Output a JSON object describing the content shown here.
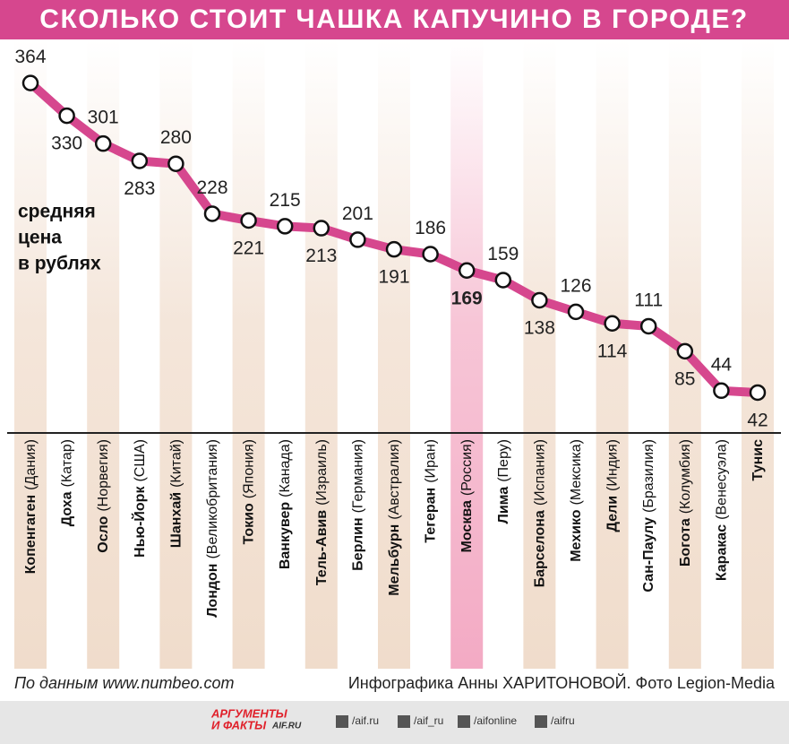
{
  "chart_data": {
    "type": "line",
    "title": "СКОЛЬКО СТОИТ ЧАШКА КАПУЧИНО В ГОРОДЕ?",
    "y_label": [
      "средняя",
      "цена",
      "в рублях"
    ],
    "categories": [
      {
        "city": "Копенгаген",
        "country": "(Дания)"
      },
      {
        "city": "Доха",
        "country": "(Катар)"
      },
      {
        "city": "Осло",
        "country": "(Норвегия)"
      },
      {
        "city": "Нью-Йорк",
        "country": "(США)"
      },
      {
        "city": "Шанхай",
        "country": "(Китай)"
      },
      {
        "city": "Лондон",
        "country": "(Великобритания)"
      },
      {
        "city": "Токио",
        "country": "(Япония)"
      },
      {
        "city": "Ванкувер",
        "country": "(Канада)"
      },
      {
        "city": "Тель-Авив",
        "country": "(Израиль)"
      },
      {
        "city": "Берлин",
        "country": "(Германия)"
      },
      {
        "city": "Мельбурн",
        "country": "(Австралия)"
      },
      {
        "city": "Тегеран",
        "country": "(Иран)"
      },
      {
        "city": "Москва",
        "country": "(Россия)"
      },
      {
        "city": "Лима",
        "country": "(Перу)"
      },
      {
        "city": "Барселона",
        "country": "(Испания)"
      },
      {
        "city": "Мехико",
        "country": "(Мексика)"
      },
      {
        "city": "Дели",
        "country": "(Индия)"
      },
      {
        "city": "Сан-Паулу",
        "country": "(Бразилия)"
      },
      {
        "city": "Богота",
        "country": "(Колумбия)"
      },
      {
        "city": "Каракас",
        "country": "(Венесуэла)"
      },
      {
        "city": "Тунис"
      }
    ],
    "values": [
      364,
      330,
      301,
      283,
      280,
      228,
      221,
      215,
      213,
      201,
      191,
      186,
      169,
      159,
      138,
      126,
      114,
      111,
      85,
      44,
      42
    ],
    "color": "#d6478e",
    "ylim": [
      0,
      400
    ],
    "highlight_category": "Москва"
  },
  "footer": {
    "source": "По данным www.numbeo.com",
    "credit": "Инфографика Анны ХАРИТОНОВОЙ. Фото Legion-Media",
    "logo": [
      "АРГУМЕНТЫ",
      "И ФАКТЫ",
      "AIF.RU"
    ],
    "social": [
      "/aif.ru",
      "/aif_ru",
      "/aifonline",
      "/aifru"
    ]
  }
}
